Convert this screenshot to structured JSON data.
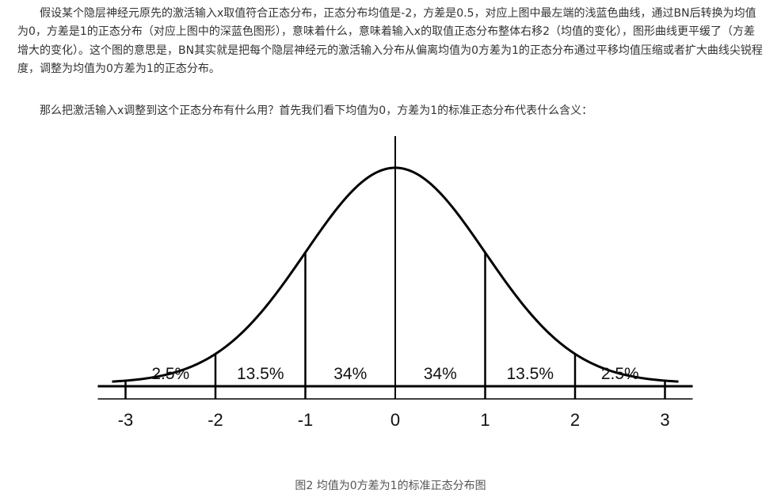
{
  "article": {
    "paragraph_1": "假设某个隐层神经元原先的激活输入x取值符合正态分布，正态分布均值是-2，方差是0.5，对应上图中最左端的浅蓝色曲线，通过BN后转换为均值为0，方差是1的正态分布（对应上图中的深蓝色图形），意味着什么，意味着输入x的取值正态分布整体右移2（均值的变化），图形曲线更平缓了（方差增大的变化）。这个图的意思是，BN其实就是把每个隐层神经元的激活输入分布从偏离均值为0方差为1的正态分布通过平移均值压缩或者扩大曲线尖锐程度，调整为均值为0方差为1的正态分布。",
    "paragraph_2": "那么把激活输入x调整到这个正态分布有什么用？首先我们看下均值为0，方差为1的标准正态分布代表什么含义：",
    "caption": "图2  均值为0方差为1的标准正态分布图"
  },
  "figure": {
    "mean": 0,
    "std": 1,
    "x_range": [
      -3.15,
      3.15
    ],
    "tick_labels": [
      "-3",
      "-2",
      "-1",
      "0",
      "1",
      "2",
      "3"
    ],
    "tick_values": [
      -3,
      -2,
      -1,
      0,
      1,
      2,
      3
    ],
    "segments": [
      {
        "from": -3,
        "to": -2,
        "label": "2.5%"
      },
      {
        "from": -2,
        "to": -1,
        "label": "13.5%"
      },
      {
        "from": -1,
        "to": 0,
        "label": "34%"
      },
      {
        "from": 0,
        "to": 1,
        "label": "34%"
      },
      {
        "from": 1,
        "to": 2,
        "label": "13.5%"
      },
      {
        "from": 2,
        "to": 3,
        "label": "2.5%"
      }
    ],
    "line_color": "#000000"
  }
}
